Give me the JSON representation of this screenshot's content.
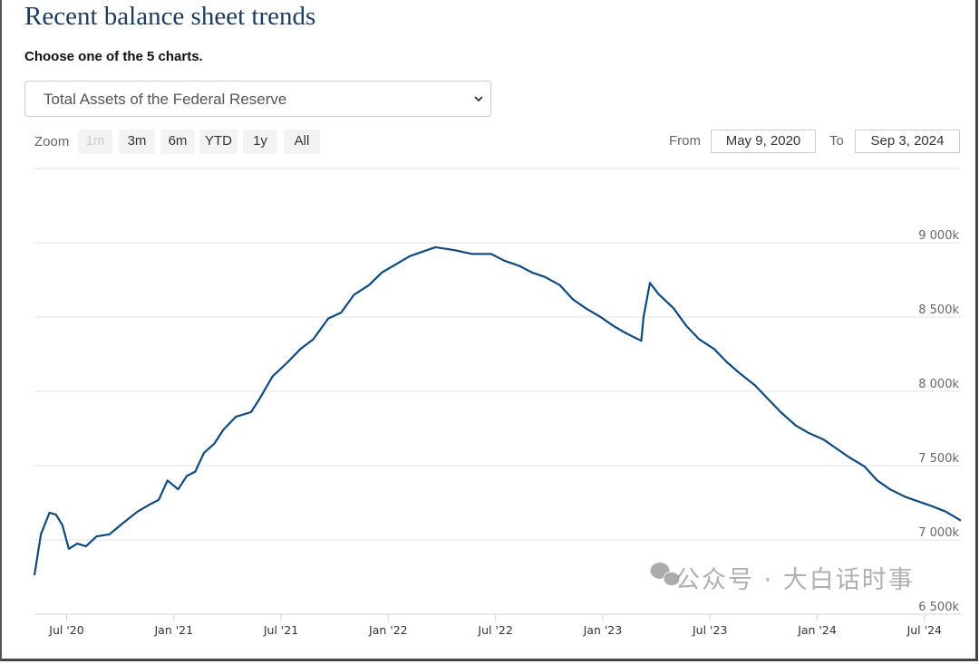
{
  "title": "Recent balance sheet trends",
  "subtitle": "Choose one of the 5 charts.",
  "selector": {
    "selected": "Total Assets of the Federal Reserve"
  },
  "zoom": {
    "label": "Zoom",
    "buttons": [
      "1m",
      "3m",
      "6m",
      "YTD",
      "1y",
      "All"
    ],
    "disabled": "1m"
  },
  "range": {
    "from_label": "From",
    "from": "May 9, 2020",
    "to_label": "To",
    "to": "Sep 3, 2024"
  },
  "watermark": "公众号 · 大白话时事",
  "colors": {
    "line": "#0e4a7e",
    "grid": "#e3e3e3",
    "title": "#1d3b5e"
  },
  "chart_data": {
    "type": "line",
    "title": "Total Assets of the Federal Reserve",
    "xlabel": "",
    "ylabel": "",
    "x_unit": "decimal year",
    "xlim": [
      2020.35,
      2024.67
    ],
    "ylim": [
      6500,
      9500
    ],
    "y_unit": "k (millions USD)",
    "yticks": [
      6500,
      7000,
      7500,
      8000,
      8500,
      9000,
      9500
    ],
    "ytick_labels": [
      "6 500k",
      "7 000k",
      "7 500k",
      "8 000k",
      "8 500k",
      "9 000k",
      ""
    ],
    "xticks": [
      2020.5,
      2021.0,
      2021.5,
      2022.0,
      2022.5,
      2023.0,
      2023.5,
      2024.0,
      2024.5
    ],
    "xtick_labels": [
      "Jul '20",
      "Jan '21",
      "Jul '21",
      "Jan '22",
      "Jul '22",
      "Jan '23",
      "Jul '23",
      "Jan '24",
      "Jul '24"
    ],
    "grid": true,
    "legend": "none",
    "series": [
      {
        "name": "Total Assets",
        "x": [
          2020.35,
          2020.38,
          2020.42,
          2020.45,
          2020.48,
          2020.51,
          2020.55,
          2020.59,
          2020.64,
          2020.7,
          2020.76,
          2020.83,
          2020.89,
          2020.93,
          2020.97,
          2021.02,
          2021.06,
          2021.1,
          2021.14,
          2021.19,
          2021.23,
          2021.29,
          2021.36,
          2021.4,
          2021.46,
          2021.53,
          2021.59,
          2021.65,
          2021.72,
          2021.78,
          2021.84,
          2021.91,
          2021.97,
          2022.03,
          2022.1,
          2022.16,
          2022.22,
          2022.31,
          2022.39,
          2022.48,
          2022.54,
          2022.61,
          2022.67,
          2022.73,
          2022.8,
          2022.86,
          2022.92,
          2022.99,
          2023.05,
          2023.11,
          2023.18,
          2023.19,
          2023.22,
          2023.26,
          2023.33,
          2023.39,
          2023.45,
          2023.52,
          2023.58,
          2023.64,
          2023.71,
          2023.77,
          2023.83,
          2023.9,
          2023.96,
          2024.03,
          2024.09,
          2024.15,
          2024.22,
          2024.28,
          2024.34,
          2024.41,
          2024.47,
          2024.53,
          2024.6,
          2024.67
        ],
        "values": [
          6762,
          7037,
          7183,
          7170,
          7100,
          6940,
          6975,
          6957,
          7024,
          7037,
          7110,
          7190,
          7240,
          7270,
          7400,
          7340,
          7430,
          7460,
          7585,
          7650,
          7740,
          7830,
          7860,
          7950,
          8100,
          8195,
          8285,
          8350,
          8490,
          8530,
          8650,
          8715,
          8800,
          8850,
          8910,
          8940,
          8970,
          8950,
          8925,
          8925,
          8880,
          8845,
          8800,
          8770,
          8715,
          8620,
          8560,
          8500,
          8440,
          8390,
          8340,
          8500,
          8730,
          8655,
          8560,
          8440,
          8350,
          8285,
          8195,
          8120,
          8040,
          7950,
          7860,
          7770,
          7720,
          7675,
          7615,
          7555,
          7495,
          7400,
          7340,
          7290,
          7260,
          7230,
          7190,
          7130
        ]
      }
    ]
  }
}
